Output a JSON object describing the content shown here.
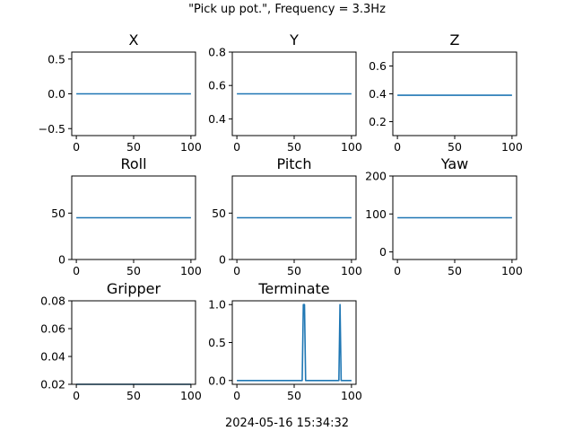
{
  "figure": {
    "suptitle": "\"Pick up pot.\", Frequency = 3.3Hz",
    "footer": "2024-05-16 15:34:32",
    "line_color": "#1f77b4"
  },
  "chart_data": [
    {
      "type": "line",
      "title": "X",
      "xlim": [
        -4,
        104
      ],
      "ylim": [
        -0.6,
        0.6
      ],
      "xticks": [
        0,
        50,
        100
      ],
      "xtick_labels": [
        "0",
        "50",
        "100"
      ],
      "yticks": [
        -0.5,
        0,
        0.5
      ],
      "ytick_labels": [
        "−0.5",
        "0.0",
        "0.5"
      ],
      "x": [
        0,
        100
      ],
      "y": [
        0.0,
        0.0
      ]
    },
    {
      "type": "line",
      "title": "Y",
      "xlim": [
        -4,
        104
      ],
      "ylim": [
        0.3,
        0.8
      ],
      "xticks": [
        0,
        50,
        100
      ],
      "xtick_labels": [
        "0",
        "50",
        "100"
      ],
      "yticks": [
        0.4,
        0.6,
        0.8
      ],
      "ytick_labels": [
        "0.4",
        "0.6",
        "0.8"
      ],
      "x": [
        0,
        100
      ],
      "y": [
        0.55,
        0.55
      ]
    },
    {
      "type": "line",
      "title": "Z",
      "xlim": [
        -4,
        104
      ],
      "ylim": [
        0.1,
        0.7
      ],
      "xticks": [
        0,
        50,
        100
      ],
      "xtick_labels": [
        "0",
        "50",
        "100"
      ],
      "yticks": [
        0.2,
        0.4,
        0.6
      ],
      "ytick_labels": [
        "0.2",
        "0.4",
        "0.6"
      ],
      "x": [
        0,
        100
      ],
      "y": [
        0.39,
        0.39
      ]
    },
    {
      "type": "line",
      "title": "Roll",
      "xlim": [
        -4,
        104
      ],
      "ylim": [
        0,
        90
      ],
      "xticks": [
        0,
        50,
        100
      ],
      "xtick_labels": [
        "0",
        "50",
        "100"
      ],
      "yticks": [
        0,
        50
      ],
      "ytick_labels": [
        "0",
        "50"
      ],
      "x": [
        0,
        100
      ],
      "y": [
        45,
        45
      ]
    },
    {
      "type": "line",
      "title": "Pitch",
      "xlim": [
        -4,
        104
      ],
      "ylim": [
        0,
        90
      ],
      "xticks": [
        0,
        50,
        100
      ],
      "xtick_labels": [
        "0",
        "50",
        "100"
      ],
      "yticks": [
        0,
        50
      ],
      "ytick_labels": [
        "0",
        "50"
      ],
      "x": [
        0,
        100
      ],
      "y": [
        45,
        45
      ]
    },
    {
      "type": "line",
      "title": "Yaw",
      "xlim": [
        -4,
        104
      ],
      "ylim": [
        -20,
        200
      ],
      "xticks": [
        0,
        50,
        100
      ],
      "xtick_labels": [
        "0",
        "50",
        "100"
      ],
      "yticks": [
        0,
        100,
        200
      ],
      "ytick_labels": [
        "0",
        "100",
        "200"
      ],
      "x": [
        0,
        100
      ],
      "y": [
        90,
        90
      ]
    },
    {
      "type": "line",
      "title": "Gripper",
      "xlim": [
        -4,
        104
      ],
      "ylim": [
        0.02,
        0.08
      ],
      "xticks": [
        0,
        50,
        100
      ],
      "xtick_labels": [
        "0",
        "50",
        "100"
      ],
      "yticks": [
        0.02,
        0.04,
        0.06,
        0.08
      ],
      "ytick_labels": [
        "0.02",
        "0.04",
        "0.06",
        "0.08"
      ],
      "x": [
        0,
        100
      ],
      "y": [
        0.02,
        0.02
      ]
    },
    {
      "type": "line",
      "title": "Terminate",
      "xlim": [
        -4,
        104
      ],
      "ylim": [
        -0.05,
        1.05
      ],
      "xticks": [
        0,
        50,
        100
      ],
      "xtick_labels": [
        "0",
        "50",
        "100"
      ],
      "yticks": [
        0,
        0.5,
        1
      ],
      "ytick_labels": [
        "0.0",
        "0.5",
        "1.0"
      ],
      "x": [
        0,
        57,
        58,
        59,
        60,
        89,
        90,
        91,
        100
      ],
      "y": [
        0,
        0,
        1,
        1,
        0,
        0,
        1,
        0,
        0
      ]
    }
  ]
}
